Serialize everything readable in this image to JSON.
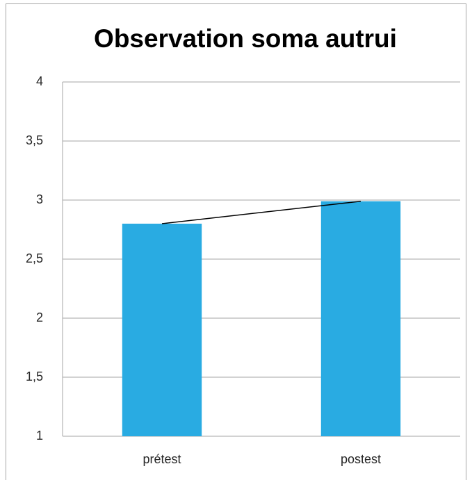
{
  "chart_data": {
    "type": "bar",
    "title": "Observation soma autrui",
    "categories": [
      "prétest",
      "postest"
    ],
    "values": [
      2.8,
      2.99
    ],
    "color": "#29abe2",
    "line_color": "#000000",
    "ylim": [
      1,
      4
    ],
    "yticks": [
      1,
      {
        "value": 1.5,
        "label": "1,5"
      },
      2,
      {
        "value": 2.5,
        "label": "2,5"
      },
      3,
      {
        "value": 3.5,
        "label": "3,5"
      },
      4
    ],
    "grid": true
  }
}
